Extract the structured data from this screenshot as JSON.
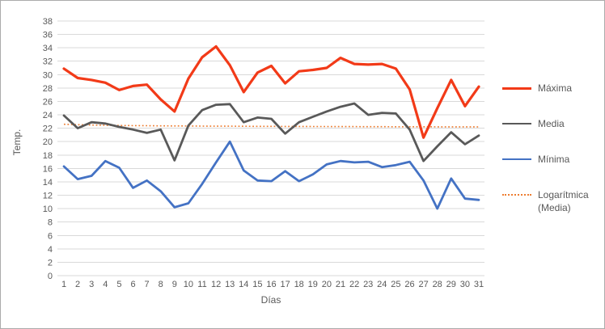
{
  "window": {
    "background_color": "#ffffff",
    "border_color": "#ababab"
  },
  "chart_data": {
    "type": "line",
    "title": "",
    "x_axis_title": "Días",
    "y_axis_title": "Temp.",
    "categories": [
      1,
      2,
      3,
      4,
      5,
      6,
      7,
      8,
      9,
      10,
      11,
      12,
      13,
      14,
      15,
      16,
      17,
      18,
      19,
      20,
      21,
      22,
      23,
      24,
      25,
      26,
      27,
      28,
      29,
      30,
      31
    ],
    "ylim": [
      0,
      38
    ],
    "y_tick_step": 2,
    "grid": "horizontal",
    "grid_color": "#d9d9d9",
    "tick_label_color": "#595959",
    "legend_position": "right",
    "series": [
      {
        "name": "Máxima",
        "color": "#f23a18",
        "line_width": 3.2,
        "values": [
          30.9,
          29.5,
          29.2,
          28.8,
          27.7,
          28.3,
          28.5,
          26.3,
          24.5,
          29.4,
          32.6,
          34.2,
          31.4,
          27.4,
          30.3,
          31.3,
          28.7,
          30.5,
          30.7,
          31.0,
          32.5,
          31.6,
          31.5,
          31.6,
          30.9,
          27.8,
          20.6,
          25.0,
          29.2,
          25.3,
          28.2
        ]
      },
      {
        "name": "Media",
        "color": "#595959",
        "line_width": 2.8,
        "values": [
          23.9,
          22.0,
          22.9,
          22.7,
          22.2,
          21.8,
          21.3,
          21.8,
          17.2,
          22.4,
          24.7,
          25.5,
          25.6,
          22.9,
          23.6,
          23.4,
          21.2,
          22.9,
          23.7,
          24.5,
          25.2,
          25.7,
          24.0,
          24.3,
          24.2,
          21.8,
          17.1,
          19.3,
          21.4,
          19.6,
          20.9
        ]
      },
      {
        "name": "Mínima",
        "color": "#4472c4",
        "line_width": 2.8,
        "values": [
          16.3,
          14.4,
          14.9,
          17.1,
          16.1,
          13.1,
          14.2,
          12.6,
          10.2,
          10.8,
          13.7,
          16.9,
          20.0,
          15.7,
          14.2,
          14.1,
          15.6,
          14.1,
          15.1,
          16.6,
          17.1,
          16.9,
          17.0,
          16.2,
          16.5,
          17.0,
          14.2,
          10.0,
          14.5,
          11.5,
          11.3
        ]
      }
    ],
    "trendline": {
      "name": "Logarítmica (Media)",
      "of_series": "Media",
      "fit": "logarithmic",
      "style": "dotted",
      "color": "#ed7d31",
      "value_at_day_1": 22.6,
      "value_at_day_31": 22.2
    }
  }
}
